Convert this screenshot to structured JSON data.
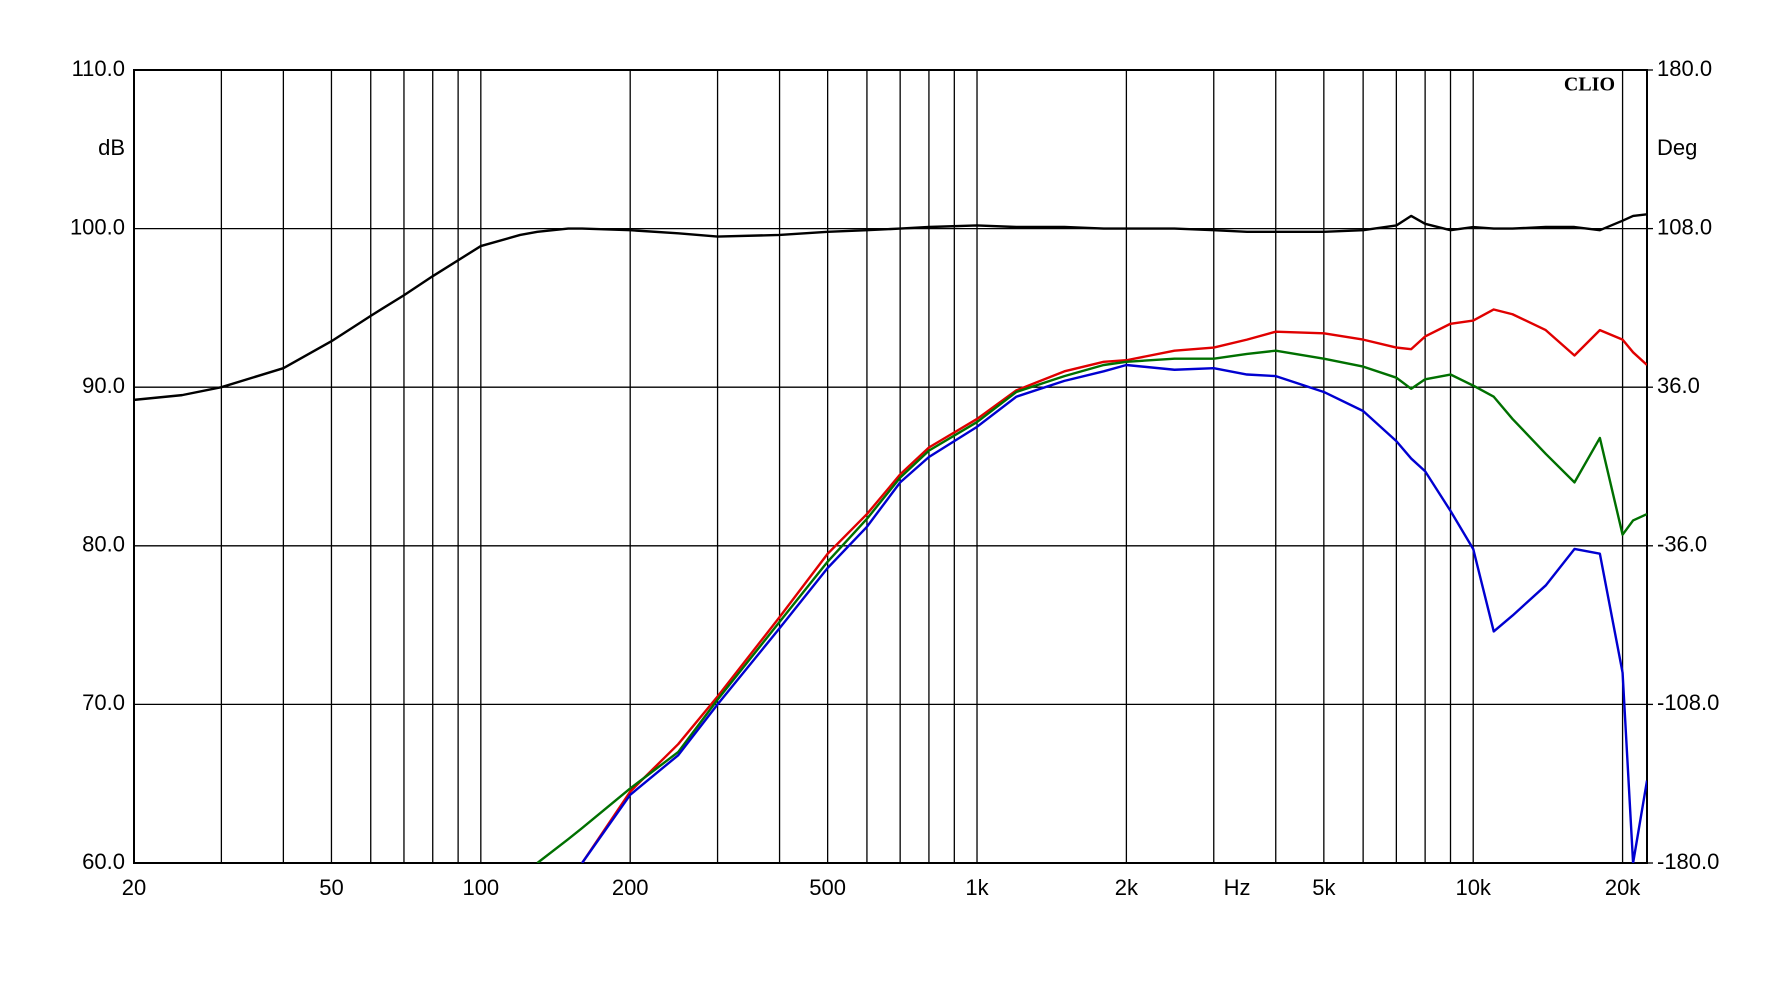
{
  "chart_data": {
    "type": "line",
    "log_x": true,
    "grid": true,
    "brand": "CLIO",
    "xlabel": "Hz",
    "ylabel": "dB",
    "y2label": "Deg",
    "xlim": [
      20,
      22400
    ],
    "ylim": [
      60,
      110
    ],
    "y2lim": [
      -180,
      180
    ],
    "xticks": [
      20,
      50,
      100,
      200,
      500,
      {
        "value": 1000,
        "label": "1k"
      },
      {
        "value": 2000,
        "label": "2k"
      },
      {
        "value": 5000,
        "label": "5k"
      },
      {
        "value": 10000,
        "label": "10k"
      },
      {
        "value": 20000,
        "label": "20k"
      }
    ],
    "xgrid_minor": [
      30,
      40,
      60,
      70,
      80,
      90,
      300,
      400,
      600,
      700,
      800,
      900,
      3000,
      4000,
      6000,
      7000,
      8000,
      9000
    ],
    "yticks": [
      {
        "value": 60,
        "label": "60.0"
      },
      {
        "value": 70,
        "label": "70.0"
      },
      {
        "value": 80,
        "label": "80.0"
      },
      {
        "value": 90,
        "label": "90.0"
      },
      {
        "value": 100,
        "label": "100.0"
      },
      {
        "value": 110,
        "label": "110.0"
      }
    ],
    "y2ticks": [
      {
        "value": -180,
        "label": "-180.0"
      },
      {
        "value": -108,
        "label": "-108.0"
      },
      {
        "value": -36,
        "label": "-36.0"
      },
      {
        "value": 36,
        "label": "36.0"
      },
      {
        "value": 108,
        "label": "108.0"
      },
      {
        "value": 180,
        "label": "180.0"
      }
    ],
    "x": [
      20,
      25,
      30,
      40,
      50,
      60,
      70,
      80,
      100,
      120,
      130,
      150,
      160,
      200,
      250,
      300,
      400,
      500,
      600,
      700,
      800,
      1000,
      1200,
      1500,
      1800,
      2000,
      2500,
      3000,
      3500,
      4000,
      5000,
      6000,
      7000,
      7500,
      8000,
      9000,
      10000,
      11000,
      12000,
      14000,
      16000,
      18000,
      20000,
      21000,
      22400
    ],
    "series": [
      {
        "color": "#000000",
        "values": [
          89.2,
          89.5,
          90.0,
          91.2,
          92.9,
          94.5,
          95.8,
          97.0,
          98.9,
          99.6,
          99.8,
          100.0,
          100.0,
          99.9,
          99.7,
          99.5,
          99.6,
          99.8,
          99.9,
          100.0,
          100.1,
          100.2,
          100.1,
          100.1,
          100.0,
          100.0,
          100.0,
          99.9,
          99.8,
          99.8,
          99.8,
          99.9,
          100.2,
          100.8,
          100.3,
          99.9,
          100.1,
          100.0,
          100.0,
          100.1,
          100.1,
          99.9,
          100.5,
          100.8,
          100.9
        ]
      },
      {
        "color": "#e00000",
        "values": [
          null,
          null,
          null,
          null,
          null,
          null,
          null,
          null,
          null,
          null,
          null,
          null,
          60,
          64.5,
          67.5,
          70.5,
          75.5,
          79.5,
          82,
          84.5,
          86.2,
          88,
          89.8,
          91,
          91.6,
          91.7,
          92.3,
          92.5,
          93,
          93.5,
          93.4,
          93,
          92.5,
          92.4,
          93.2,
          94,
          94.2,
          94.9,
          94.6,
          93.6,
          92,
          93.6,
          93,
          92.2,
          91.4
        ]
      },
      {
        "color": "#007000",
        "values": [
          null,
          null,
          null,
          null,
          null,
          null,
          null,
          null,
          null,
          null,
          60,
          61.5,
          62.2,
          64.7,
          67,
          70.3,
          75.2,
          79,
          81.7,
          84.3,
          86,
          87.8,
          89.7,
          90.7,
          91.4,
          91.6,
          91.8,
          91.8,
          92.1,
          92.3,
          91.8,
          91.3,
          90.6,
          89.9,
          90.5,
          90.8,
          90.1,
          89.4,
          88,
          85.8,
          84,
          86.8,
          80.7,
          81.6,
          82
        ]
      },
      {
        "color": "#0000d0",
        "values": [
          null,
          null,
          null,
          null,
          null,
          null,
          null,
          null,
          null,
          null,
          null,
          null,
          60,
          64.3,
          66.8,
          70,
          74.8,
          78.6,
          81.2,
          84,
          85.6,
          87.5,
          89.4,
          90.4,
          91,
          91.4,
          91.1,
          91.2,
          90.8,
          90.7,
          89.7,
          88.5,
          86.6,
          85.5,
          84.7,
          82.2,
          79.8,
          74.6,
          75.6,
          77.5,
          79.8,
          79.5,
          72,
          60,
          65.2
        ]
      }
    ]
  }
}
